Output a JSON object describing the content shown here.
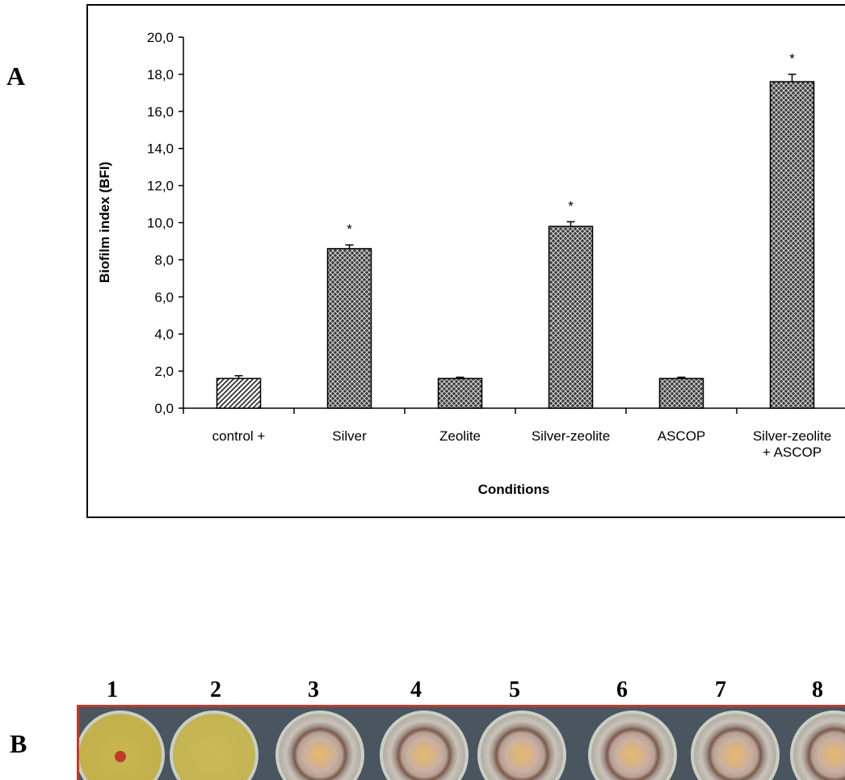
{
  "panel_a": {
    "label": "A"
  },
  "panel_b": {
    "label": "B",
    "well_numbers": [
      "1",
      "2",
      "3",
      "4",
      "5",
      "6",
      "7",
      "8"
    ]
  },
  "chart_data": {
    "type": "bar",
    "categories": [
      "control +",
      "Silver",
      "Zeolite",
      "Silver-zeolite",
      "ASCOP",
      "Silver-zeolite\n+ ASCOP"
    ],
    "values": [
      1.6,
      8.6,
      1.6,
      9.8,
      1.6,
      17.6
    ],
    "error": [
      0.15,
      0.2,
      0.07,
      0.25,
      0.07,
      0.4
    ],
    "significance": [
      "",
      "*",
      "",
      "*",
      "",
      "*"
    ],
    "patterns": [
      "diagonal-hatch",
      "crosshatch",
      "crosshatch",
      "crosshatch",
      "crosshatch",
      "crosshatch"
    ],
    "xlabel": "Conditions",
    "ylabel": "Biofilm index (BFI)",
    "ylim": [
      0,
      20
    ],
    "yticks": [
      "0,0",
      "2,0",
      "4,0",
      "6,0",
      "8,0",
      "10,0",
      "12,0",
      "14,0",
      "16,0",
      "18,0",
      "20,0"
    ],
    "grid": false,
    "legend": "none"
  }
}
